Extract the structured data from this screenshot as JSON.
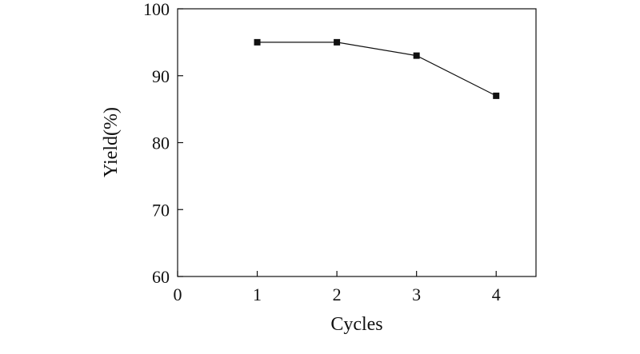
{
  "chart_data": {
    "type": "line",
    "title": "",
    "xlabel": "Cycles",
    "ylabel": "Yield(%)",
    "x": [
      1,
      2,
      3,
      4
    ],
    "series": [
      {
        "values": [
          95,
          95,
          93,
          87
        ]
      }
    ],
    "xlim": [
      0,
      4.5
    ],
    "ylim": [
      60,
      100
    ],
    "xticks": [
      "0",
      "1",
      "2",
      "3",
      "4"
    ],
    "yticks": [
      "60",
      "70",
      "80",
      "90",
      "100"
    ],
    "grid": false,
    "legend": "none",
    "marker": "square",
    "colors": {
      "line": "#111111",
      "marker": "#111111",
      "axis": "#111111"
    }
  }
}
